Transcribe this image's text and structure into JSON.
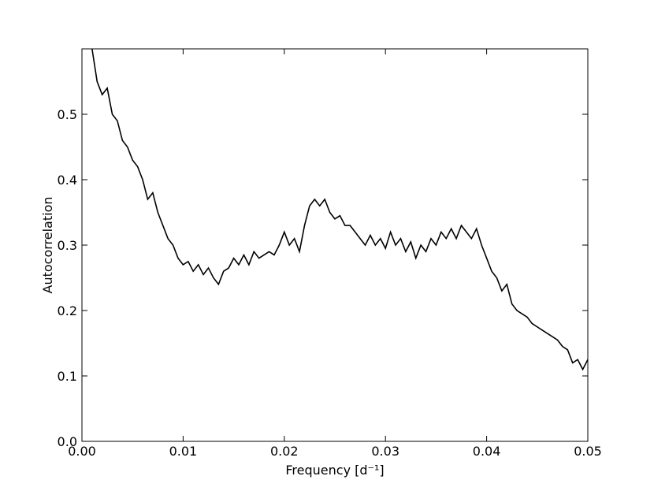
{
  "chart_data": {
    "type": "line",
    "xlabel": "Frequency [d⁻¹]",
    "ylabel": "Autocorrelation",
    "x": [
      0.001,
      0.0015,
      0.002,
      0.0025,
      0.003,
      0.0035,
      0.004,
      0.0045,
      0.005,
      0.0055,
      0.006,
      0.0065,
      0.007,
      0.0075,
      0.008,
      0.0085,
      0.009,
      0.0095,
      0.01,
      0.0105,
      0.011,
      0.0115,
      0.012,
      0.0125,
      0.013,
      0.0135,
      0.014,
      0.0145,
      0.015,
      0.0155,
      0.016,
      0.0165,
      0.017,
      0.0175,
      0.018,
      0.0185,
      0.019,
      0.0195,
      0.02,
      0.0205,
      0.021,
      0.0215,
      0.022,
      0.0225,
      0.023,
      0.0235,
      0.024,
      0.0245,
      0.025,
      0.0255,
      0.026,
      0.0265,
      0.027,
      0.0275,
      0.028,
      0.0285,
      0.029,
      0.0295,
      0.03,
      0.0305,
      0.031,
      0.0315,
      0.032,
      0.0325,
      0.033,
      0.0335,
      0.034,
      0.0345,
      0.035,
      0.0355,
      0.036,
      0.0365,
      0.037,
      0.0375,
      0.038,
      0.0385,
      0.039,
      0.0395,
      0.04,
      0.0405,
      0.041,
      0.0415,
      0.042,
      0.0425,
      0.043,
      0.0435,
      0.044,
      0.0445,
      0.045,
      0.0455,
      0.046,
      0.0465,
      0.047,
      0.0475,
      0.048,
      0.0485,
      0.049,
      0.0495,
      0.05
    ],
    "series": [
      {
        "color": "#000000",
        "values": [
          0.6,
          0.55,
          0.53,
          0.54,
          0.5,
          0.49,
          0.46,
          0.45,
          0.43,
          0.42,
          0.4,
          0.37,
          0.38,
          0.35,
          0.33,
          0.31,
          0.3,
          0.28,
          0.27,
          0.275,
          0.26,
          0.27,
          0.255,
          0.265,
          0.25,
          0.24,
          0.26,
          0.265,
          0.28,
          0.27,
          0.285,
          0.27,
          0.29,
          0.28,
          0.285,
          0.29,
          0.285,
          0.3,
          0.32,
          0.3,
          0.31,
          0.29,
          0.33,
          0.36,
          0.37,
          0.36,
          0.37,
          0.35,
          0.34,
          0.345,
          0.33,
          0.33,
          0.32,
          0.31,
          0.3,
          0.315,
          0.3,
          0.31,
          0.295,
          0.32,
          0.3,
          0.31,
          0.29,
          0.305,
          0.28,
          0.3,
          0.29,
          0.31,
          0.3,
          0.32,
          0.31,
          0.325,
          0.31,
          0.33,
          0.32,
          0.31,
          0.325,
          0.3,
          0.28,
          0.26,
          0.25,
          0.23,
          0.24,
          0.21,
          0.2,
          0.195,
          0.19,
          0.18,
          0.175,
          0.17,
          0.165,
          0.16,
          0.155,
          0.145,
          0.14,
          0.12,
          0.125,
          0.11,
          0.125
        ]
      }
    ],
    "xlim": [
      0,
      0.05
    ],
    "ylim": [
      0,
      0.6
    ],
    "xticks": [
      {
        "value": 0,
        "label": "0.00"
      },
      0.01,
      0.02,
      0.03,
      0.04,
      0.05
    ],
    "yticks": [
      {
        "value": 0,
        "label": "0.0"
      },
      0.1,
      0.2,
      0.3,
      0.4,
      0.5
    ]
  }
}
